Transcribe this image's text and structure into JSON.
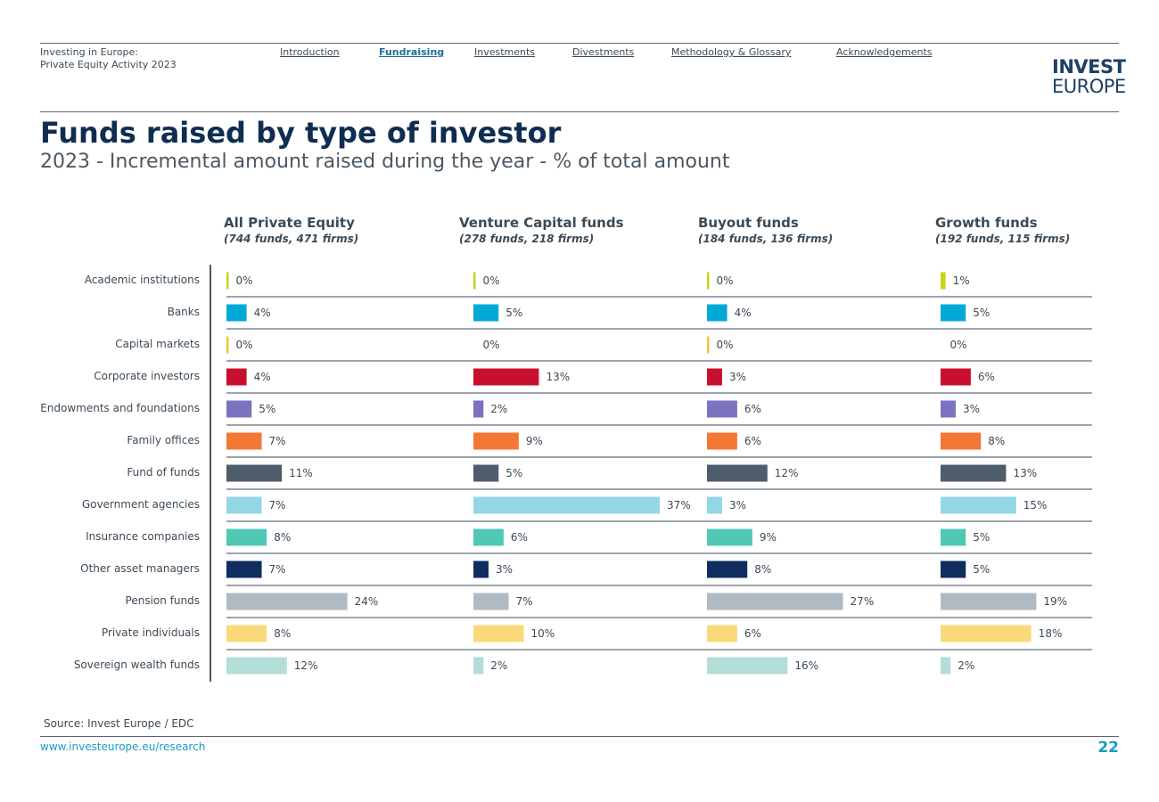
{
  "header": {
    "brand_line1": "Investing in Europe:",
    "brand_line2": "Private Equity Activity 2023",
    "nav": [
      {
        "label": "Introduction",
        "active": false
      },
      {
        "label": "Fundraising",
        "active": true
      },
      {
        "label": "Investments",
        "active": false
      },
      {
        "label": "Divestments",
        "active": false
      },
      {
        "label": "Methodology & Glossary",
        "active": false
      },
      {
        "label": "Acknowledgements",
        "active": false
      }
    ],
    "logo_line1": "INVEST",
    "logo_line2": "EUROPE"
  },
  "title": "Funds raised by type of investor",
  "subtitle": "2023 - Incremental amount raised during the year - % of total amount",
  "chart_data": {
    "type": "bar",
    "orientation": "horizontal",
    "categories": [
      "Academic institutions",
      "Banks",
      "Capital markets",
      "Corporate investors",
      "Endowments and foundations",
      "Family offices",
      "Fund of funds",
      "Government agencies",
      "Insurance companies",
      "Other asset managers",
      "Pension funds",
      "Private individuals",
      "Sovereign wealth funds"
    ],
    "category_colors": [
      "#c5d61a",
      "#00a9d6",
      "#f5c338",
      "#c8102e",
      "#7b72c0",
      "#f47735",
      "#4e5d6c",
      "#93d6e6",
      "#4fc9b4",
      "#0f2d5e",
      "#b0bac3",
      "#fad97a",
      "#b2ded7"
    ],
    "value_unit": "%",
    "panels": [
      {
        "title": "All Private Equity",
        "subtitle": "(744 funds, 471 firms)",
        "values": [
          0,
          4,
          0,
          4,
          5,
          7,
          11,
          7,
          8,
          7,
          24,
          8,
          12
        ]
      },
      {
        "title": "Venture Capital funds",
        "subtitle": "(278 funds, 218 firms)",
        "values": [
          0,
          5,
          0,
          13,
          2,
          9,
          5,
          37,
          6,
          3,
          7,
          10,
          2
        ]
      },
      {
        "title": "Buyout funds",
        "subtitle": "(184 funds, 136 firms)",
        "values": [
          0,
          4,
          0,
          3,
          6,
          6,
          12,
          3,
          9,
          8,
          27,
          6,
          16
        ]
      },
      {
        "title": "Growth funds",
        "subtitle": "(192 funds, 115 firms)",
        "values": [
          1,
          5,
          0,
          6,
          3,
          8,
          13,
          15,
          5,
          5,
          19,
          18,
          2
        ]
      }
    ]
  },
  "footer": {
    "source": "Source: Invest Europe / EDC",
    "url": "www.investeurope.eu/research",
    "page_number": "22"
  }
}
